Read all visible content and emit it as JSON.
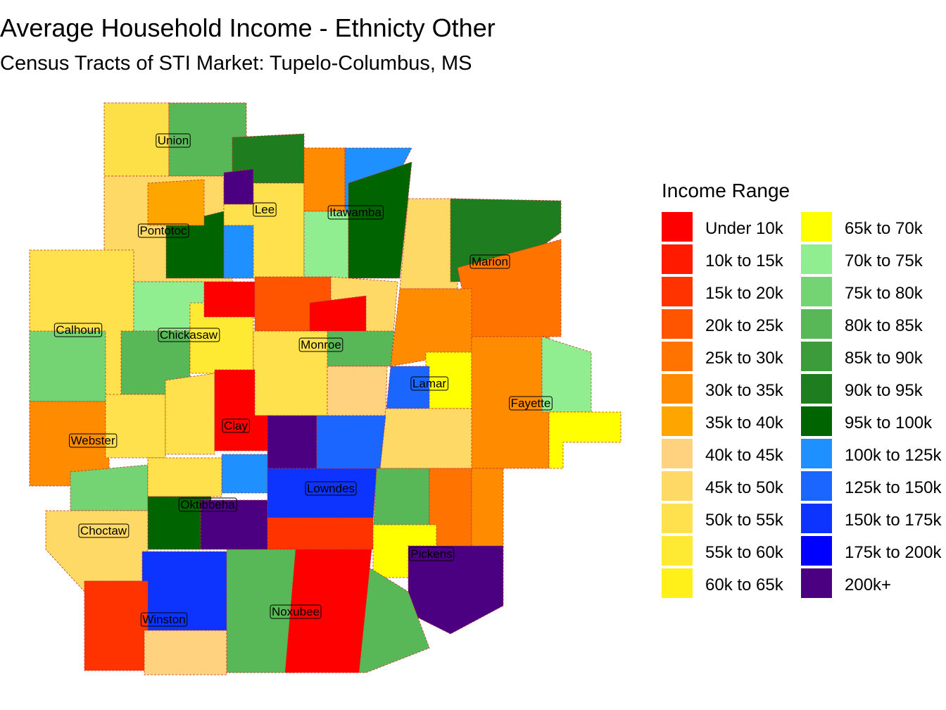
{
  "title": "Average Household Income - Ethnicty Other",
  "subtitle": "Census Tracts of STI Market: Tupelo-Columbus, MS",
  "legend": {
    "title": "Income Range",
    "items": [
      {
        "label": "Under 10k",
        "color": "#ff0000"
      },
      {
        "label": "10k to 15k",
        "color": "#ff1a00"
      },
      {
        "label": "15k to 20k",
        "color": "#ff3300"
      },
      {
        "label": "20k to 25k",
        "color": "#ff5500"
      },
      {
        "label": "25k to 30k",
        "color": "#ff7300"
      },
      {
        "label": "30k to 35k",
        "color": "#ff8c00"
      },
      {
        "label": "35k to 40k",
        "color": "#ffa500"
      },
      {
        "label": "40k to 45k",
        "color": "#ffd27f"
      },
      {
        "label": "45k to 50k",
        "color": "#ffd966"
      },
      {
        "label": "50k to 55k",
        "color": "#ffe14d"
      },
      {
        "label": "55k to 60k",
        "color": "#ffea33"
      },
      {
        "label": "60k to 65k",
        "color": "#fff01a"
      },
      {
        "label": "65k to 70k",
        "color": "#ffff00"
      },
      {
        "label": "70k to 75k",
        "color": "#90ee90"
      },
      {
        "label": "75k to 80k",
        "color": "#74d474"
      },
      {
        "label": "80k to 85k",
        "color": "#58b858"
      },
      {
        "label": "85k to 90k",
        "color": "#3c9c3c"
      },
      {
        "label": "90k to 95k",
        "color": "#1e7d1e"
      },
      {
        "label": "95k to 100k",
        "color": "#006400"
      },
      {
        "label": "100k to 125k",
        "color": "#1e90ff"
      },
      {
        "label": "125k to 150k",
        "color": "#1a66ff"
      },
      {
        "label": "150k to 175k",
        "color": "#0d33ff"
      },
      {
        "label": "175k to 200k",
        "color": "#0000ff"
      },
      {
        "label": "200k+",
        "color": "#4b0082"
      }
    ]
  },
  "counties": [
    "Union",
    "Lee",
    "Itawamba",
    "Pontotoc",
    "Marion",
    "Calhoun",
    "Chickasaw",
    "Monroe",
    "Lamar",
    "Fayette",
    "Clay",
    "Webster",
    "Lowndes",
    "Oktibbeha",
    "Choctaw",
    "Pickens",
    "Noxubee",
    "Winston"
  ]
}
